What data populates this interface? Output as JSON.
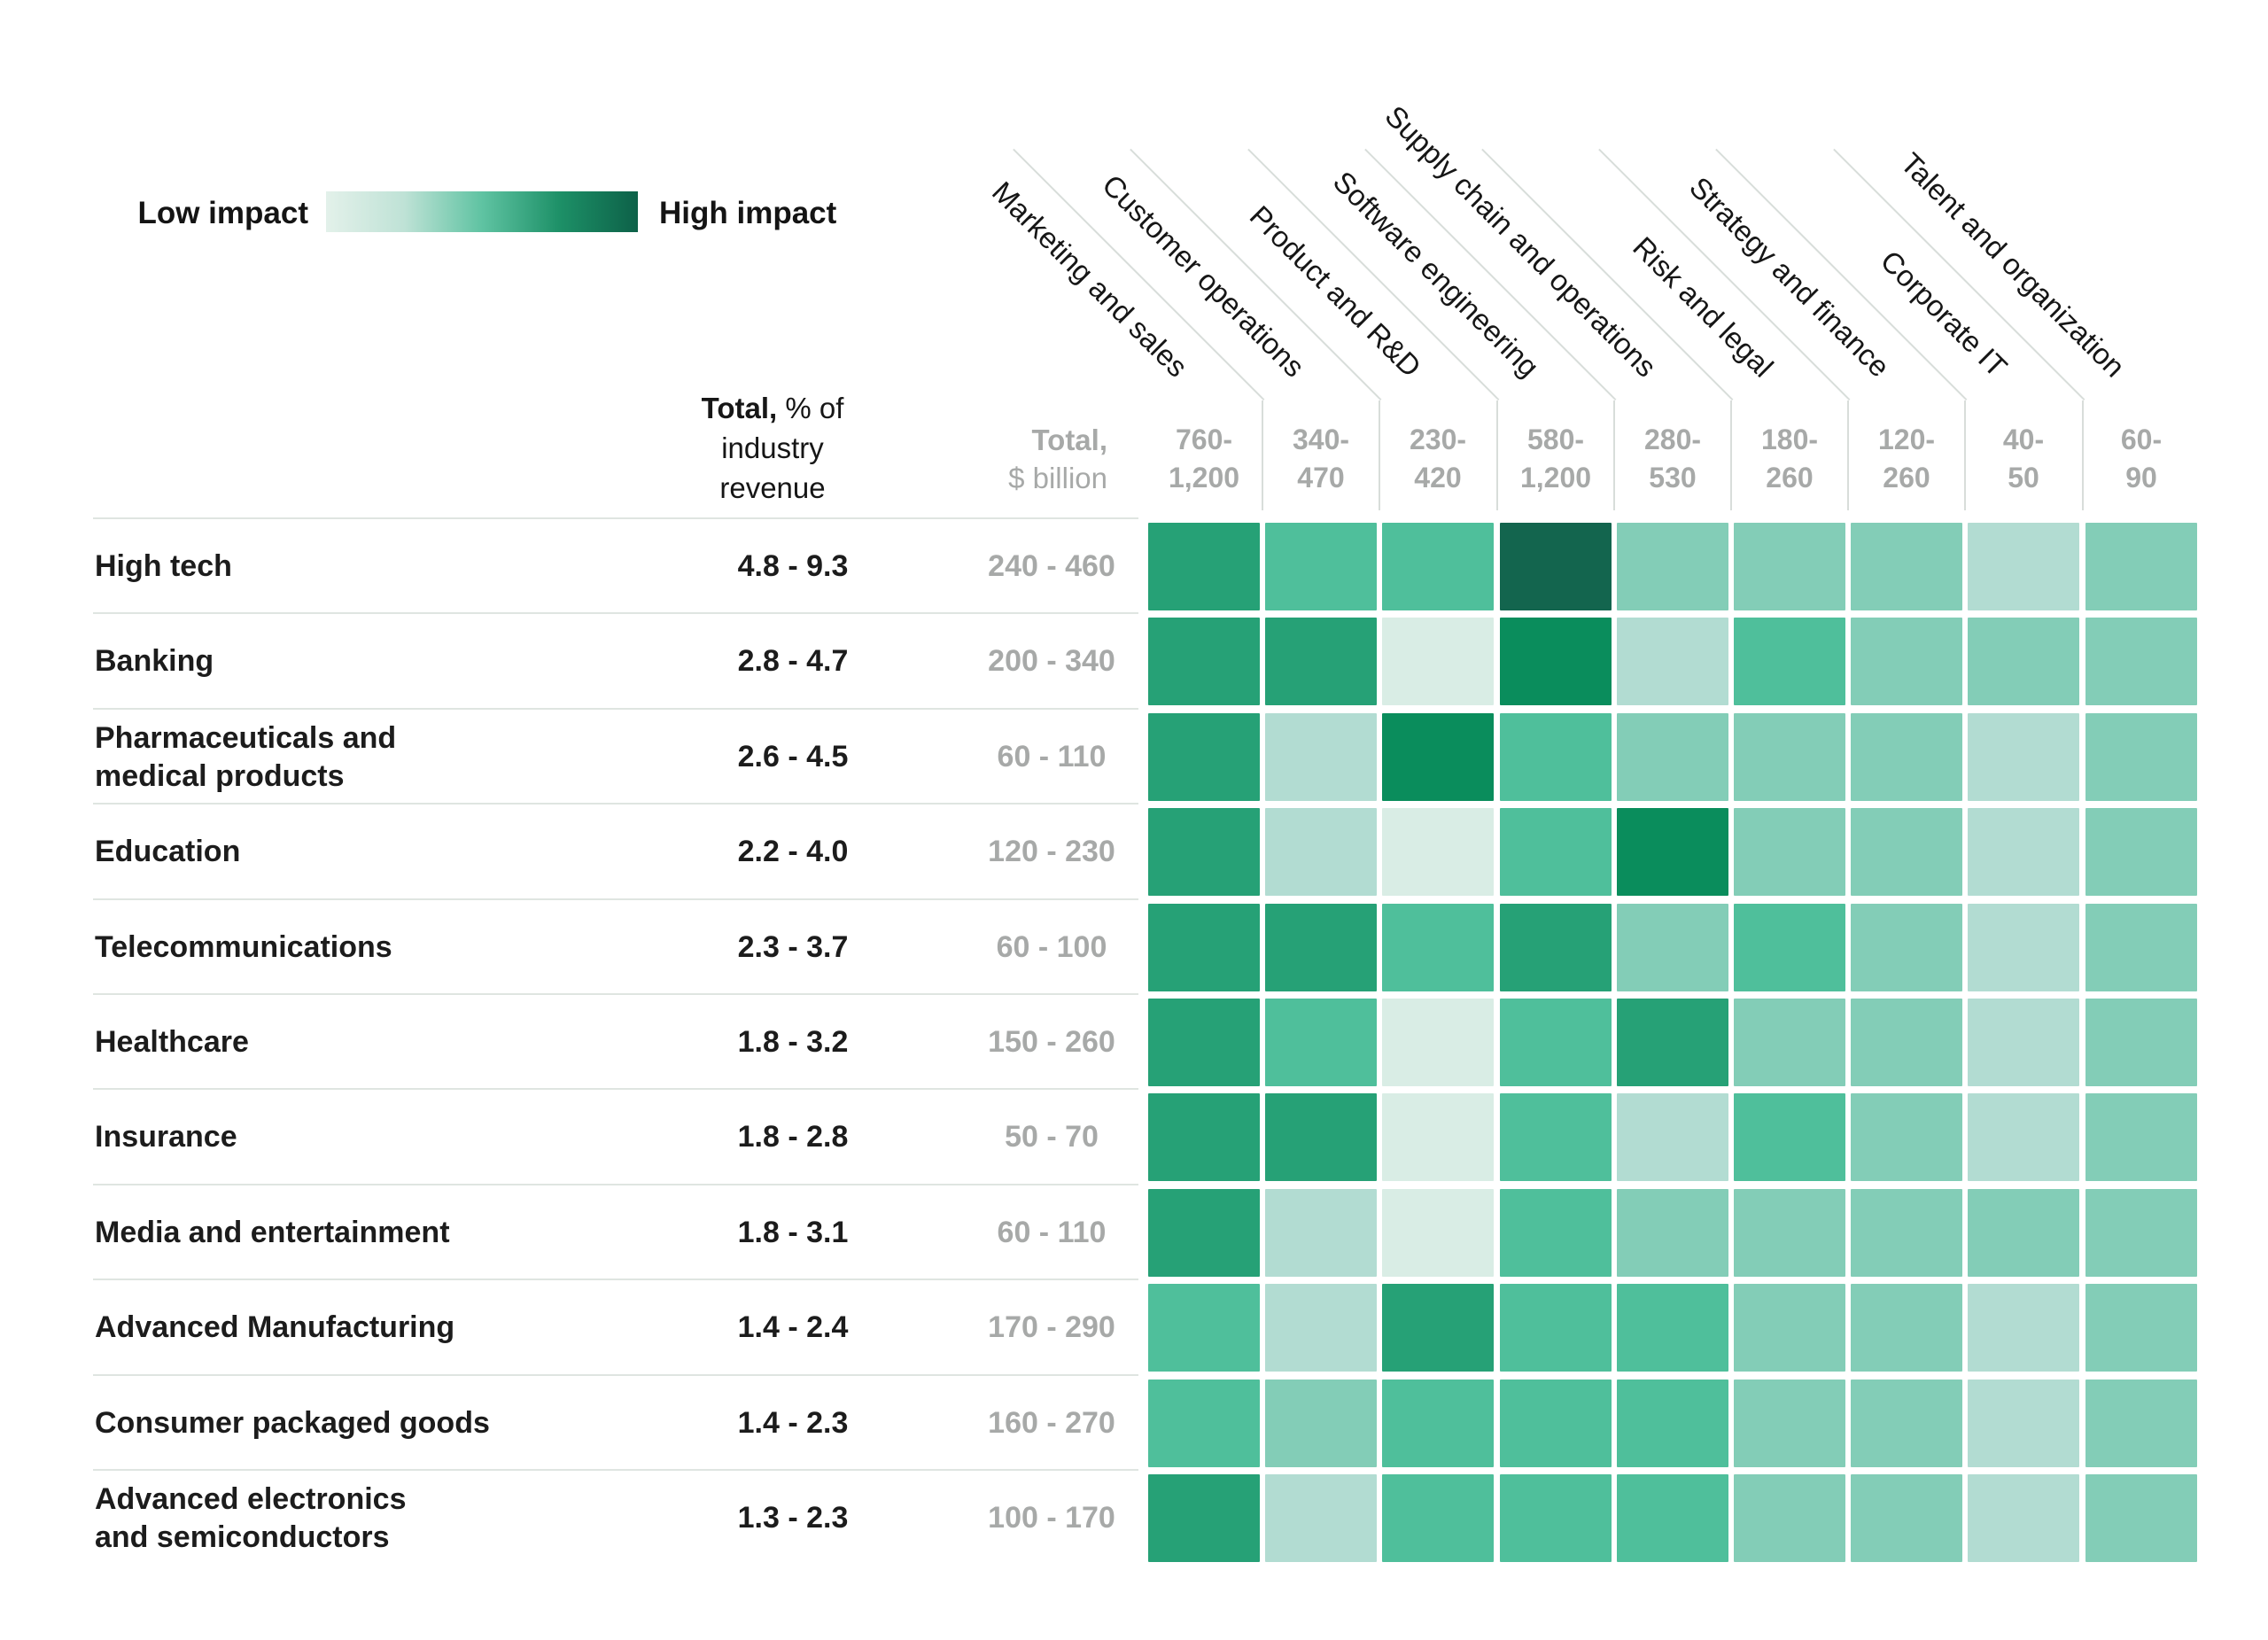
{
  "legend": {
    "low_label": "Low impact",
    "high_label": "High impact"
  },
  "headers": {
    "total_pct": {
      "prefix": "Total,",
      "suffix": " % of",
      "line2": "industry",
      "line3": "revenue"
    },
    "total_billion": {
      "prefix": "Total,",
      "line2": "$ billion"
    }
  },
  "colors": {
    "impact_palette": {
      "1": "#d9ede5",
      "2": "#b2dcd2",
      "3": "#83cdb7",
      "4": "#4fbf9b",
      "5": "#26a176",
      "6": "#0a8d5c",
      "7": "#13654e"
    },
    "legend_gradient": [
      "#e3f1ea",
      "#bfe2d6",
      "#5fc3a2",
      "#1d9067",
      "#0d6148"
    ],
    "separator_line": "#d8ddda",
    "row_separator": "#dfe5e1",
    "muted_text": "#a7a9a8"
  },
  "chart_data": {
    "type": "heatmap",
    "impact_scale": {
      "min_label": "Low impact",
      "max_label": "High impact",
      "levels": 7
    },
    "columns": [
      {
        "label": "Marketing and sales",
        "range": [
          "760-",
          "1,200"
        ]
      },
      {
        "label": "Customer operations",
        "range": [
          "340-",
          "470"
        ]
      },
      {
        "label": "Product and R&D",
        "range": [
          "230-",
          "420"
        ]
      },
      {
        "label": "Software engineering",
        "range": [
          "580-",
          "1,200"
        ]
      },
      {
        "label": "Supply chain and operations",
        "range": [
          "280-",
          "530"
        ]
      },
      {
        "label": "Risk and legal",
        "range": [
          "180-",
          "260"
        ]
      },
      {
        "label": "Strategy and finance",
        "range": [
          "120-",
          "260"
        ]
      },
      {
        "label": "Corporate IT",
        "range": [
          "40-",
          "50"
        ]
      },
      {
        "label": "Talent and organization",
        "range": [
          "60-",
          "90"
        ]
      }
    ],
    "rows": [
      {
        "industry": "High tech",
        "pct": "4.8 - 9.3",
        "billion": "240 - 460",
        "impact": [
          5,
          4,
          4,
          7,
          3,
          3,
          3,
          2,
          3
        ]
      },
      {
        "industry": "Banking",
        "pct": "2.8 - 4.7",
        "billion": "200 - 340",
        "impact": [
          5,
          5,
          1,
          6,
          2,
          4,
          3,
          3,
          3
        ]
      },
      {
        "industry": "Pharmaceuticals and\nmedical products",
        "pct": "2.6 - 4.5",
        "billion": "60 - 110",
        "impact": [
          5,
          2,
          6,
          4,
          3,
          3,
          3,
          2,
          3
        ]
      },
      {
        "industry": "Education",
        "pct": "2.2 - 4.0",
        "billion": "120 - 230",
        "impact": [
          5,
          2,
          1,
          4,
          6,
          3,
          3,
          2,
          3
        ]
      },
      {
        "industry": "Telecommunications",
        "pct": "2.3 - 3.7",
        "billion": "60 - 100",
        "impact": [
          5,
          5,
          4,
          5,
          3,
          4,
          3,
          2,
          3
        ]
      },
      {
        "industry": "Healthcare",
        "pct": "1.8 - 3.2",
        "billion": "150 - 260",
        "impact": [
          5,
          4,
          1,
          4,
          5,
          3,
          3,
          2,
          3
        ]
      },
      {
        "industry": "Insurance",
        "pct": "1.8 - 2.8",
        "billion": "50 - 70",
        "impact": [
          5,
          5,
          1,
          4,
          2,
          4,
          3,
          2,
          3
        ]
      },
      {
        "industry": "Media and entertainment",
        "pct": "1.8 - 3.1",
        "billion": "60 - 110",
        "impact": [
          5,
          2,
          1,
          4,
          3,
          3,
          3,
          3,
          3
        ]
      },
      {
        "industry": "Advanced Manufacturing",
        "pct": "1.4 - 2.4",
        "billion": "170 - 290",
        "impact": [
          4,
          2,
          5,
          4,
          4,
          3,
          3,
          2,
          3
        ]
      },
      {
        "industry": "Consumer packaged goods",
        "pct": "1.4 - 2.3",
        "billion": "160 - 270",
        "impact": [
          4,
          3,
          4,
          4,
          4,
          3,
          3,
          2,
          3
        ]
      },
      {
        "industry": "Advanced electronics\nand semiconductors",
        "pct": "1.3 - 2.3",
        "billion": "100 - 170",
        "impact": [
          5,
          2,
          4,
          4,
          4,
          3,
          3,
          2,
          3
        ]
      }
    ]
  }
}
